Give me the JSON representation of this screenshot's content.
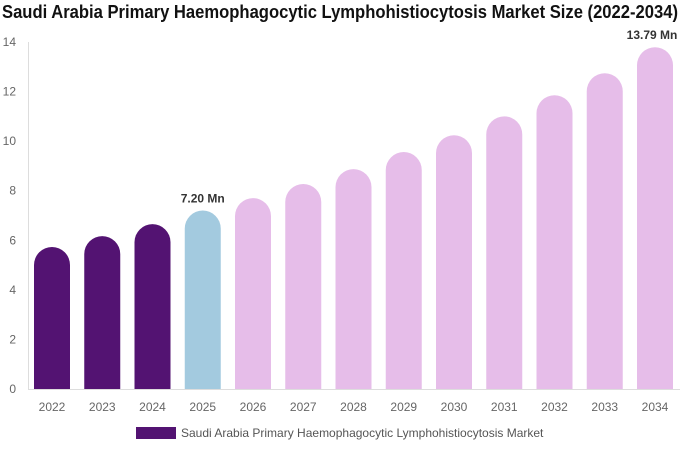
{
  "chart_data": {
    "type": "bar",
    "title": "Saudi Arabia Primary Haemophagocytic Lymphohistiocytosis Market Size (2022-2034)",
    "categories": [
      "2022",
      "2023",
      "2024",
      "2025",
      "2026",
      "2027",
      "2028",
      "2029",
      "2030",
      "2031",
      "2032",
      "2033",
      "2034"
    ],
    "series": [
      {
        "name": "Saudi Arabia Primary Haemophagocytic Lymphohistiocytosis Market",
        "values": [
          5.73,
          6.17,
          6.65,
          7.2,
          7.7,
          8.27,
          8.87,
          9.56,
          10.24,
          11.0,
          11.85,
          12.74,
          13.79
        ]
      }
    ],
    "data_labels": {
      "2025": "7.20 Mn",
      "2034": "13.79 Mn"
    },
    "ylim": [
      0,
      14
    ],
    "yticks": [
      0,
      2,
      4,
      6,
      8,
      10,
      12,
      14
    ],
    "grid": false,
    "legend_position": "bottom",
    "colors": {
      "historical": "#531372",
      "current": "#a3cadf",
      "forecast": "#e6bde9"
    }
  }
}
